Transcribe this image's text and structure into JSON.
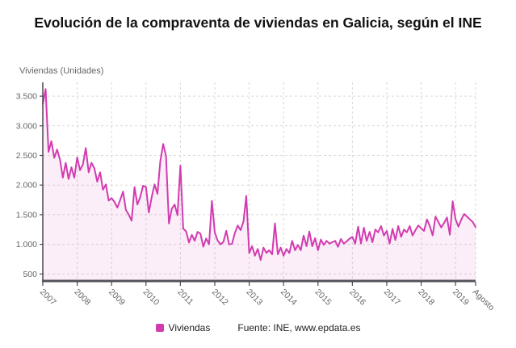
{
  "title": "Evolución de la compraventa de viviendas en Galicia, según el INE",
  "unit_label": "Viviendas (Unidades)",
  "legend": {
    "series_label": "Viviendas",
    "source_text": "Fuente: INE, www.epdata.es"
  },
  "colors": {
    "line": "#d23bb0",
    "area_fill": "rgba(210,59,176,0.085)",
    "grid": "#d9d9d9",
    "axis": "#56525c",
    "tick_text": "#666666",
    "title_text": "#111111"
  },
  "chart_data": {
    "type": "area",
    "title": "Evolución de la compraventa de viviendas en Galicia, según el INE",
    "ylabel": "Viviendas (Unidades)",
    "xlabel": "",
    "grid": true,
    "legend_position": "bottom",
    "x_start": "2007-01",
    "x_end": "2019-08",
    "x_tick_labels": [
      "2007",
      "2008",
      "2009",
      "2010",
      "2011",
      "2012",
      "2013",
      "2014",
      "2015",
      "2016",
      "2017",
      "2018",
      "2019",
      "Agosto"
    ],
    "y_ticks": [
      500,
      1000,
      1500,
      2000,
      2500,
      3000,
      3500
    ],
    "y_tick_labels": [
      "500",
      "1.000",
      "1.500",
      "2.000",
      "2.500",
      "3.000",
      "3.500"
    ],
    "ylim": [
      380,
      3700
    ],
    "series": [
      {
        "name": "Viviendas",
        "values": [
          3370,
          3620,
          2560,
          2740,
          2460,
          2600,
          2430,
          2125,
          2375,
          2102,
          2300,
          2125,
          2466,
          2250,
          2350,
          2625,
          2215,
          2374,
          2280,
          2057,
          2215,
          1921,
          2011,
          1739,
          1780,
          1716,
          1620,
          1750,
          1889,
          1580,
          1500,
          1399,
          1966,
          1671,
          1800,
          1989,
          1966,
          1535,
          1800,
          2012,
          1852,
          2400,
          2693,
          2489,
          1353,
          1600,
          1671,
          1490,
          2330,
          1263,
          1220,
          1030,
          1160,
          1060,
          1210,
          1180,
          960,
          1100,
          1000,
          1735,
          1200,
          1064,
          1000,
          1040,
          1227,
          1000,
          1010,
          1190,
          1318,
          1240,
          1386,
          1817,
          854,
          967,
          808,
          922,
          736,
          944,
          854,
          900,
          831,
          1353,
          831,
          944,
          808,
          922,
          854,
          1058,
          900,
          990,
          900,
          1148,
          967,
          1217,
          967,
          1103,
          900,
          1080,
          990,
          1058,
          1012,
          1035,
          1058,
          958,
          1090,
          1012,
          1049,
          1095,
          1126,
          1012,
          1298,
          1012,
          1280,
          1058,
          1210,
          1035,
          1249,
          1203,
          1308,
          1149,
          1226,
          1012,
          1262,
          1072,
          1308,
          1126,
          1249,
          1203,
          1308,
          1149,
          1240,
          1317,
          1271,
          1226,
          1421,
          1310,
          1150,
          1467,
          1376,
          1285,
          1362,
          1453,
          1162,
          1726,
          1421,
          1299,
          1421,
          1512,
          1466,
          1421,
          1376,
          1290
        ]
      }
    ]
  }
}
